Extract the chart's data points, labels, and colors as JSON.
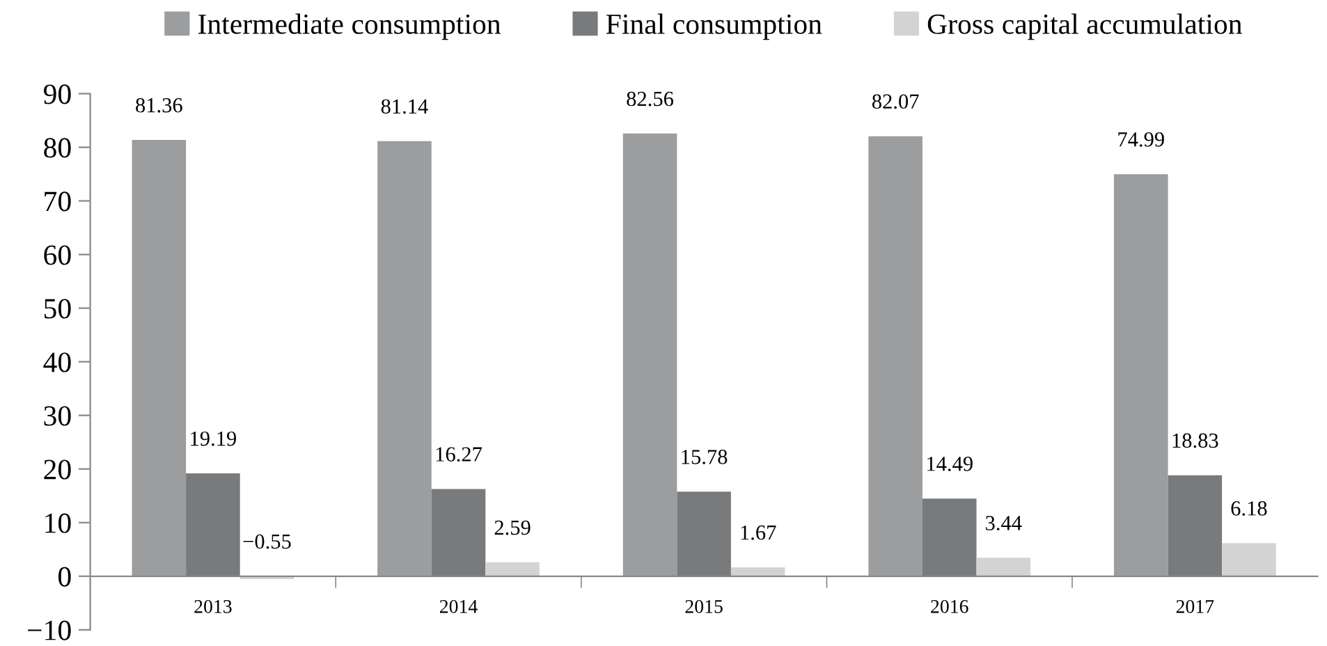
{
  "chart_data": {
    "type": "bar",
    "categories": [
      "2013",
      "2014",
      "2015",
      "2016",
      "2017"
    ],
    "series": [
      {
        "name": "Intermediate consumption",
        "color": "#9b9d9e",
        "values": [
          81.36,
          81.14,
          82.56,
          82.07,
          74.99
        ]
      },
      {
        "name": "Final consumption",
        "color": "#797a7c",
        "values": [
          19.19,
          16.27,
          15.78,
          14.49,
          18.83
        ]
      },
      {
        "name": "Gross capital accumulation",
        "color": "#d3d3d3",
        "values": [
          -0.55,
          2.59,
          1.67,
          3.44,
          6.18
        ]
      }
    ],
    "ylim": [
      -10,
      90
    ],
    "yticks": [
      {
        "value": -10,
        "label": "−10"
      },
      0,
      10,
      20,
      30,
      40,
      50,
      60,
      70,
      80,
      90
    ],
    "data_labels": true,
    "grid": false,
    "legend": "top"
  }
}
